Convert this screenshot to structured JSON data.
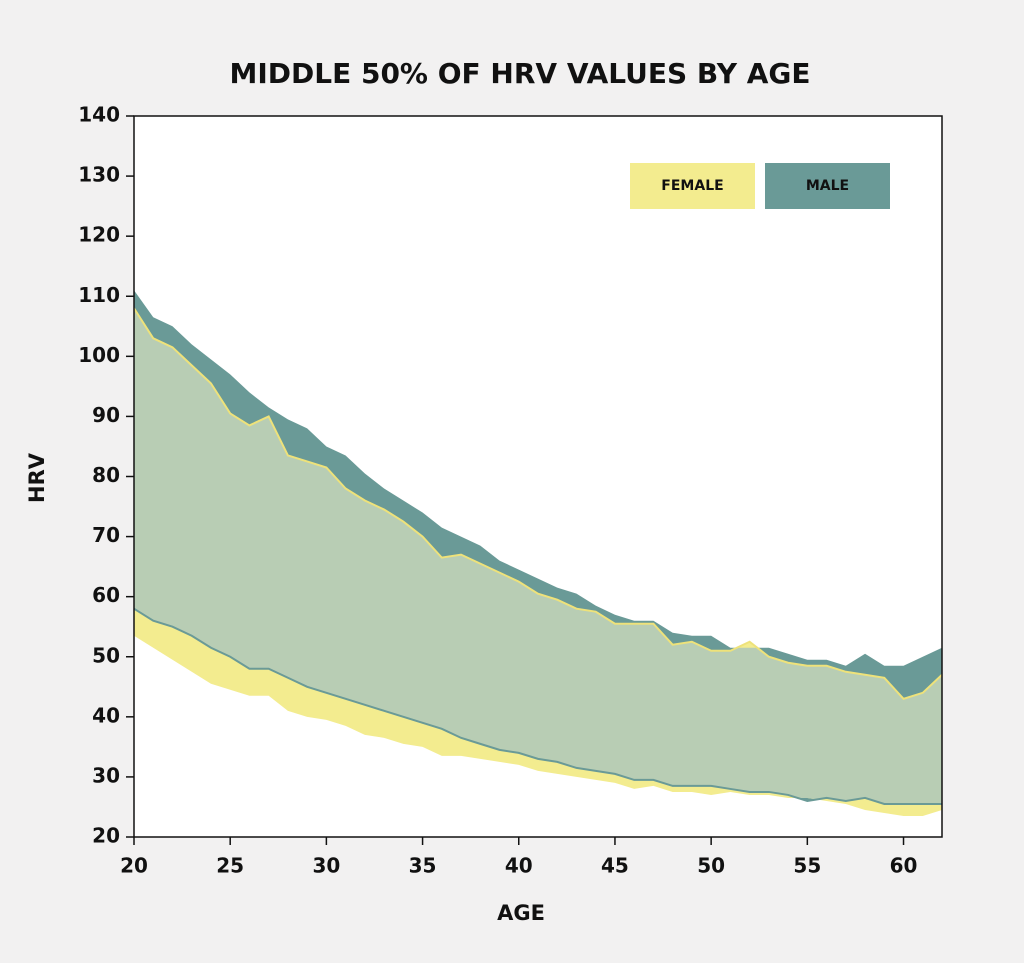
{
  "chart_data": {
    "type": "range_area",
    "title": "MIDDLE 50% OF HRV VALUES BY AGE",
    "xlabel": "AGE",
    "ylabel": "HRV",
    "x": [
      20,
      21,
      22,
      23,
      24,
      25,
      26,
      27,
      28,
      29,
      30,
      31,
      32,
      33,
      34,
      35,
      36,
      37,
      38,
      39,
      40,
      41,
      42,
      43,
      44,
      45,
      46,
      47,
      48,
      49,
      50,
      51,
      52,
      53,
      54,
      55,
      56,
      57,
      58,
      59,
      60,
      61,
      62
    ],
    "series": [
      {
        "name": "FEMALE",
        "color": "#f3ec8f",
        "low": [
          53.5,
          51.5,
          49.5,
          47.5,
          45.5,
          44.5,
          43.5,
          43.5,
          41,
          40,
          39.5,
          38.5,
          37,
          36.5,
          35.5,
          35,
          33.5,
          33.5,
          33,
          32.5,
          32,
          31,
          30.5,
          30,
          29.5,
          29,
          28,
          28.5,
          27.5,
          27.5,
          27,
          27.5,
          27,
          27,
          26.5,
          26.5,
          26,
          25.5,
          24.5,
          24,
          23.5,
          23.5,
          24.5
        ],
        "high": [
          108,
          103,
          101.5,
          98.5,
          95.5,
          90.5,
          88.5,
          90,
          83.5,
          82.5,
          81.5,
          78,
          76,
          74.5,
          72.5,
          70,
          66.5,
          67,
          65.5,
          64,
          62.5,
          60.5,
          59.5,
          58,
          57.5,
          55.5,
          55.5,
          55.5,
          52,
          52.5,
          51,
          51,
          52.5,
          50,
          49,
          48.5,
          48.5,
          47.5,
          47,
          46.5,
          43,
          44,
          47
        ]
      },
      {
        "name": "MALE",
        "color": "#6a9a97",
        "low": [
          58,
          56,
          55,
          53.5,
          51.5,
          50,
          48,
          48,
          46.5,
          45,
          44,
          43,
          42,
          41,
          40,
          39,
          38,
          36.5,
          35.5,
          34.5,
          34,
          33,
          32.5,
          31.5,
          31,
          30.5,
          29.5,
          29.5,
          28.5,
          28.5,
          28.5,
          28,
          27.5,
          27.5,
          27,
          26,
          26.5,
          26,
          26.5,
          25.5,
          25.5,
          25.5,
          25.5
        ],
        "high": [
          111,
          106.5,
          105,
          102,
          99.5,
          97,
          94,
          91.5,
          89.5,
          88,
          85,
          83.5,
          80.5,
          78,
          76,
          74,
          71.5,
          70,
          68.5,
          66,
          64.5,
          63,
          61.5,
          60.5,
          58.5,
          57,
          56,
          56,
          54,
          53.5,
          53.5,
          51.5,
          51.5,
          51.5,
          50.5,
          49.5,
          49.5,
          48.5,
          50.5,
          48.5,
          48.5,
          50,
          51.5
        ]
      }
    ],
    "overlap_color": "#b8cdb4",
    "xlim": [
      20,
      62
    ],
    "xticks": [
      20,
      25,
      30,
      35,
      40,
      45,
      50,
      55,
      60
    ],
    "ylim": [
      20,
      140
    ],
    "yticks": [
      20,
      30,
      40,
      50,
      60,
      70,
      80,
      90,
      100,
      110,
      120,
      130,
      140
    ],
    "legend": "upper right"
  }
}
